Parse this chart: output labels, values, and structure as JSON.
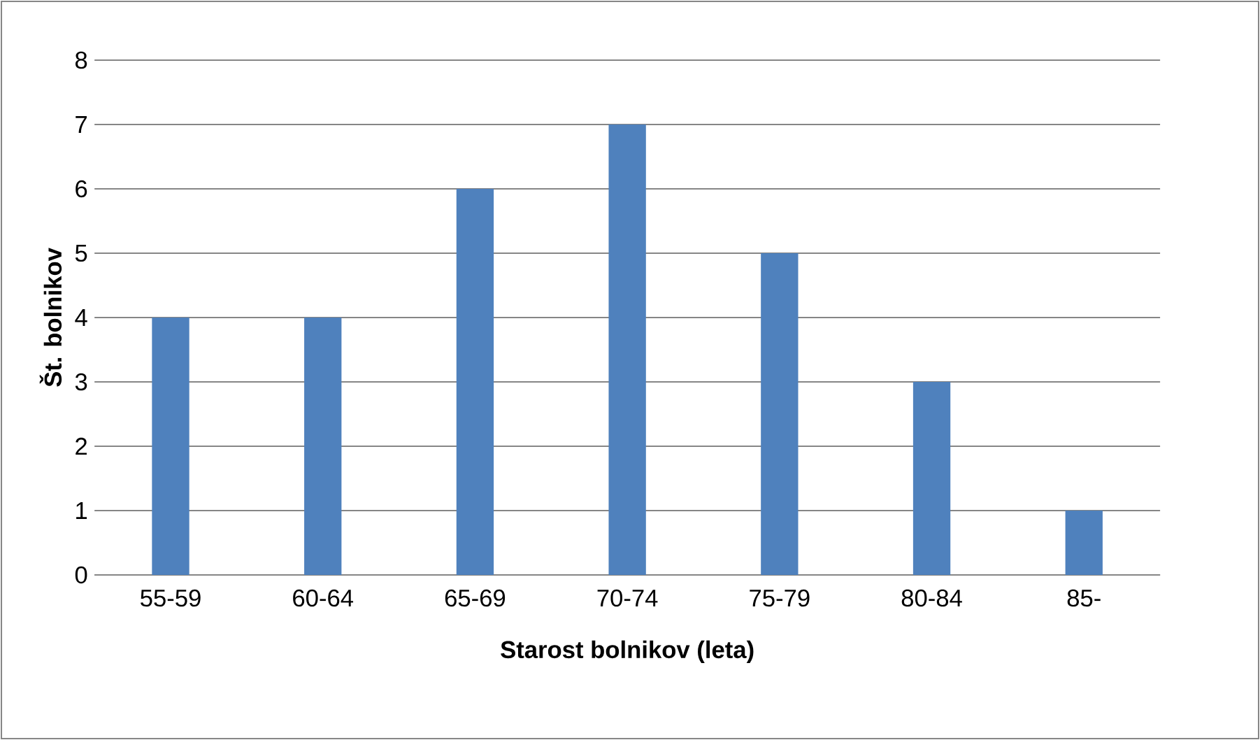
{
  "chart_data": {
    "type": "bar",
    "xlabel": "Starost bolnikov (leta)",
    "ylabel": "Št. bolnikov",
    "categories": [
      "55-59",
      "60-64",
      "65-69",
      "70-74",
      "75-79",
      "80-84",
      "85-"
    ],
    "values": [
      4,
      4,
      6,
      7,
      5,
      3,
      1
    ],
    "color": "#4f81bd",
    "ylim": [
      0,
      8
    ],
    "yticks": [
      0,
      1,
      2,
      3,
      4,
      5,
      6,
      7,
      8
    ],
    "grid": "y"
  }
}
